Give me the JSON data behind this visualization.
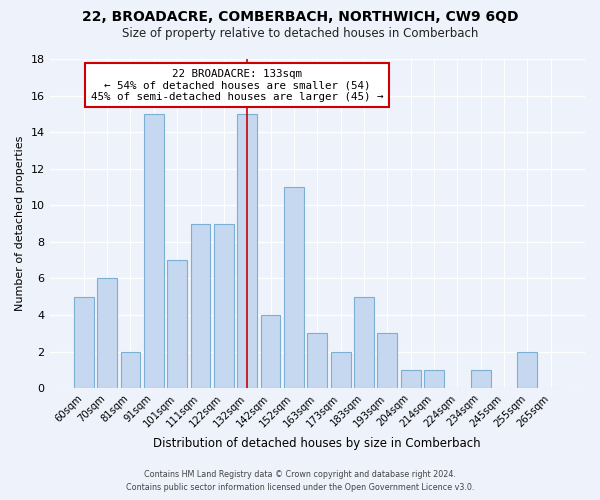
{
  "title1": "22, BROADACRE, COMBERBACH, NORTHWICH, CW9 6QD",
  "title2": "Size of property relative to detached houses in Comberbach",
  "xlabel": "Distribution of detached houses by size in Comberbach",
  "ylabel": "Number of detached properties",
  "bins": [
    "60sqm",
    "70sqm",
    "81sqm",
    "91sqm",
    "101sqm",
    "111sqm",
    "122sqm",
    "132sqm",
    "142sqm",
    "152sqm",
    "163sqm",
    "173sqm",
    "183sqm",
    "193sqm",
    "204sqm",
    "214sqm",
    "224sqm",
    "234sqm",
    "245sqm",
    "255sqm",
    "265sqm"
  ],
  "values": [
    5,
    6,
    2,
    15,
    7,
    9,
    9,
    15,
    4,
    11,
    3,
    2,
    5,
    3,
    1,
    1,
    0,
    1,
    0,
    2,
    0
  ],
  "bar_color": "#c5d8f0",
  "bar_edge_color": "#7bafd4",
  "highlight_index": 7,
  "highlight_line_color": "#cc0000",
  "ylim": [
    0,
    18
  ],
  "yticks": [
    0,
    2,
    4,
    6,
    8,
    10,
    12,
    14,
    16,
    18
  ],
  "annotation_title": "22 BROADACRE: 133sqm",
  "annotation_line1": "← 54% of detached houses are smaller (54)",
  "annotation_line2": "45% of semi-detached houses are larger (45) →",
  "annotation_box_edge": "#cc0000",
  "footer1": "Contains HM Land Registry data © Crown copyright and database right 2024.",
  "footer2": "Contains public sector information licensed under the Open Government Licence v3.0.",
  "background_color": "#eef2fa"
}
